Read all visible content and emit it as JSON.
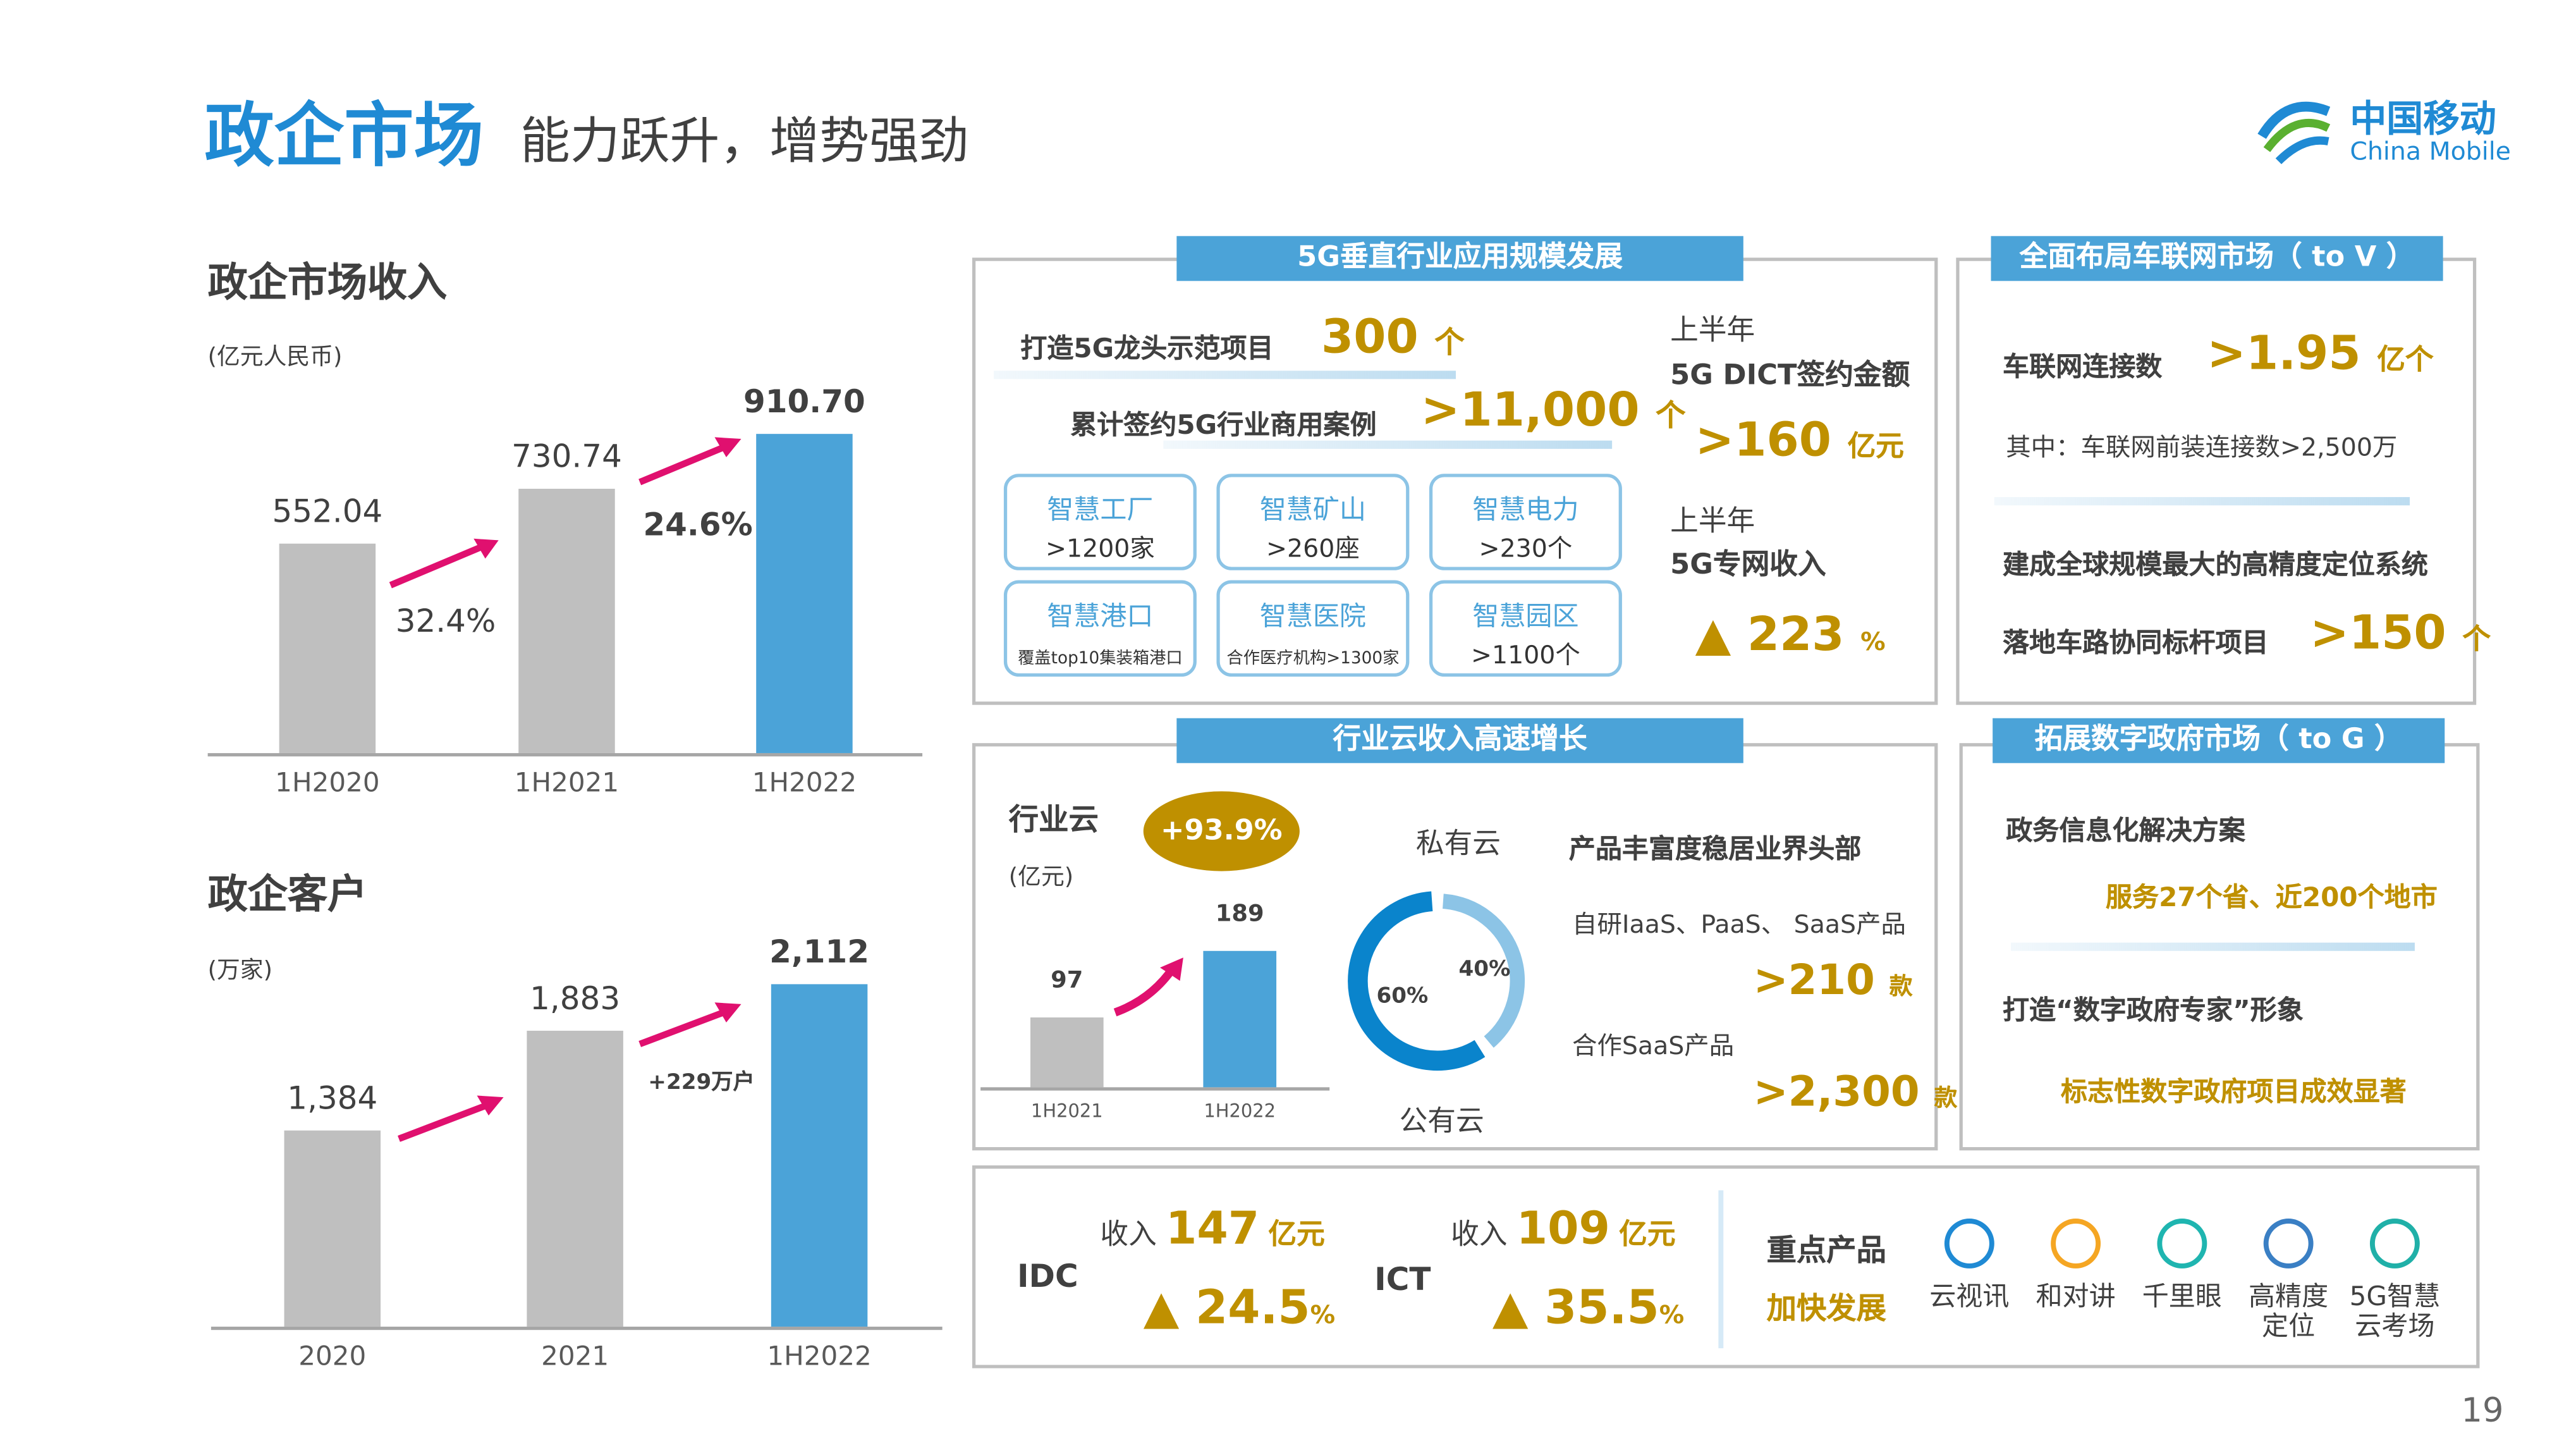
{
  "header": {
    "title": "政企市场",
    "subtitle": "能力跃升，增势强劲",
    "logo_cn": "中国移动",
    "logo_en": "China Mobile",
    "page_number": "19"
  },
  "colors": {
    "blue": "#4ba3d8",
    "gray_bar": "#bfbfbf",
    "gold": "#bf9000",
    "arrow": "#e0106f"
  },
  "chart_data": [
    {
      "type": "bar",
      "title": "政企市场收入",
      "ylabel": "(亿元人民币)",
      "categories": [
        "1H2020",
        "1H2021",
        "1H2022"
      ],
      "values": [
        552.04,
        730.74,
        910.7
      ],
      "value_labels": [
        "552.04",
        "730.74",
        "910.70"
      ],
      "growth_labels": [
        "32.4%",
        "24.6%"
      ],
      "ylim": [
        -133,
        911
      ]
    },
    {
      "type": "bar",
      "title": "政企客户",
      "ylabel": "(万家)",
      "categories": [
        "2020",
        "2021",
        "1H2022"
      ],
      "values": [
        1384,
        1883,
        2112
      ],
      "value_labels": [
        "1,384",
        "1,883",
        "2,112"
      ],
      "growth_labels": [
        "+229万户"
      ],
      "ylim": [
        405,
        2112
      ]
    },
    {
      "type": "bar",
      "title": "行业云",
      "ylabel": "(亿元)",
      "categories": [
        "1H2021",
        "1H2022"
      ],
      "values": [
        97,
        189
      ],
      "value_labels": [
        "97",
        "189"
      ],
      "growth_label": "+93.9%",
      "ylim": [
        0,
        189
      ]
    },
    {
      "type": "pie",
      "donut": true,
      "labels": [
        "公有云",
        "私有云"
      ],
      "values": [
        60,
        40
      ],
      "value_labels": [
        "60%",
        "40%"
      ]
    }
  ],
  "fiveg": {
    "tab": "5G垂直行业应用规模发展",
    "line1_label": "打造5G龙头示范项目",
    "line1_value": "300",
    "line1_unit": "个",
    "line2_label": "累计签约5G行业商用案例",
    "line2_value": ">11,000",
    "line2_unit": "个",
    "tiles": [
      {
        "name": "智慧工厂",
        "value": ">1200家"
      },
      {
        "name": "智慧矿山",
        "value": ">260座"
      },
      {
        "name": "智慧电力",
        "value": ">230个"
      },
      {
        "name": "智慧港口",
        "value": "覆盖top10集装箱港口"
      },
      {
        "name": "智慧医院",
        "value": "合作医疗机构>1300家"
      },
      {
        "name": "智慧园区",
        "value": ">1100个"
      }
    ],
    "dict_period": "上半年",
    "dict_label": "5G DICT签约金额",
    "dict_value": ">160",
    "dict_unit": "亿元",
    "net_period": "上半年",
    "net_label": "5G专网收入",
    "net_value": "223",
    "net_unit": "%"
  },
  "car": {
    "tab": "全面布局车联网市场（ to V ）",
    "conn_label": "车联网连接数",
    "conn_value": ">1.95",
    "conn_unit": "亿个",
    "sub": "其中：车联网前装连接数>2,500万",
    "system": "建成全球规模最大的高精度定位系统",
    "proj_label": "落地车路协同标杆项目",
    "proj_value": ">150",
    "proj_unit": "个"
  },
  "cloud": {
    "tab": "行业云收入高速增长",
    "private": "私有云",
    "public": "公有云",
    "headline": "产品丰富度稳居业界头部",
    "self_label": "自研IaaS、PaaS、 SaaS产品",
    "self_value": ">210",
    "self_unit": "款",
    "partner_label": "合作SaaS产品",
    "partner_value": ">2,300",
    "partner_unit": "款"
  },
  "gov": {
    "tab": "拓展数字政府市场（ to G ）",
    "l1": "政务信息化解决方案",
    "l1_sub": "服务27个省、近200个地市",
    "l2": "打造“数字政府专家”形象",
    "l2_sub": "标志性数字政府项目成效显著"
  },
  "bottom": {
    "idc": {
      "label": "IDC",
      "rev_prefix": "收入",
      "rev_value": "147",
      "rev_unit": "亿元",
      "growth": "24.5",
      "growth_unit": "%"
    },
    "ict": {
      "label": "ICT",
      "rev_prefix": "收入",
      "rev_value": "109",
      "rev_unit": "亿元",
      "growth": "35.5",
      "growth_unit": "%"
    },
    "key_products": "重点产品",
    "accelerate": "加快发展",
    "products": [
      {
        "name": "云视讯",
        "icon": "video-conference-icon"
      },
      {
        "name": "和对讲",
        "icon": "walkie-talkie-icon"
      },
      {
        "name": "千里眼",
        "icon": "eye-camera-icon"
      },
      {
        "name": "高精度定位",
        "icon": "positioning-icon"
      },
      {
        "name": "5G智慧云考场",
        "icon": "exam-room-icon"
      }
    ]
  }
}
